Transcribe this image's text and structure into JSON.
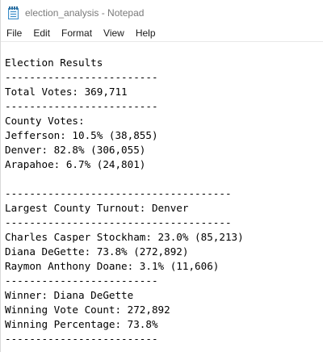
{
  "window": {
    "title": "election_analysis - Notepad"
  },
  "menu": {
    "items": [
      "File",
      "Edit",
      "Format",
      "View",
      "Help"
    ]
  },
  "icons": {
    "app": "notepad-icon"
  },
  "document": {
    "lines": [
      "Election Results",
      "-------------------------",
      "Total Votes: 369,711",
      "-------------------------",
      "County Votes:",
      "Jefferson: 10.5% (38,855)",
      "Denver: 82.8% (306,055)",
      "Arapahoe: 6.7% (24,801)",
      "",
      "-------------------------------------",
      "Largest County Turnout: Denver",
      "-------------------------------------",
      "Charles Casper Stockham: 23.0% (85,213)",
      "Diana DeGette: 73.8% (272,892)",
      "Raymon Anthony Doane: 3.1% (11,606)",
      "-------------------------",
      "Winner: Diana DeGette",
      "Winning Vote Count: 272,892",
      "Winning Percentage: 73.8%",
      "-------------------------"
    ]
  }
}
